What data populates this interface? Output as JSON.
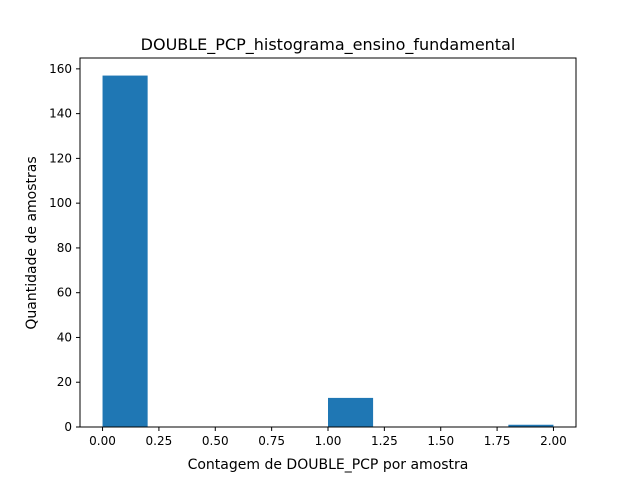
{
  "chart_data": {
    "type": "bar",
    "title": "DOUBLE_PCP_histograma_ensino_fundamental",
    "xlabel": "Contagem de DOUBLE_PCP por amostra",
    "ylabel": "Quantidade de amostras",
    "xlim": [
      -0.1,
      2.1
    ],
    "ylim": [
      0,
      164.85
    ],
    "grid": false,
    "bar_color": "#1f77b4",
    "bins": [
      {
        "x0": 0.0,
        "x1": 0.2,
        "value": 157
      },
      {
        "x0": 0.2,
        "x1": 0.4,
        "value": 0
      },
      {
        "x0": 0.4,
        "x1": 0.6,
        "value": 0
      },
      {
        "x0": 0.6,
        "x1": 0.8,
        "value": 0
      },
      {
        "x0": 0.8,
        "x1": 1.0,
        "value": 0
      },
      {
        "x0": 1.0,
        "x1": 1.2,
        "value": 13
      },
      {
        "x0": 1.2,
        "x1": 1.4,
        "value": 0
      },
      {
        "x0": 1.4,
        "x1": 1.6,
        "value": 0
      },
      {
        "x0": 1.6,
        "x1": 1.8,
        "value": 0
      },
      {
        "x0": 1.8,
        "x1": 2.0,
        "value": 1
      }
    ],
    "xticks": [
      {
        "value": 0.0,
        "label": "0.00"
      },
      {
        "value": 0.25,
        "label": "0.25"
      },
      {
        "value": 0.5,
        "label": "0.50"
      },
      {
        "value": 0.75,
        "label": "0.75"
      },
      {
        "value": 1.0,
        "label": "1.00"
      },
      {
        "value": 1.25,
        "label": "1.25"
      },
      {
        "value": 1.5,
        "label": "1.50"
      },
      {
        "value": 1.75,
        "label": "1.75"
      },
      {
        "value": 2.0,
        "label": "2.00"
      }
    ],
    "yticks": [
      {
        "value": 0,
        "label": "0"
      },
      {
        "value": 20,
        "label": "20"
      },
      {
        "value": 40,
        "label": "40"
      },
      {
        "value": 60,
        "label": "60"
      },
      {
        "value": 80,
        "label": "80"
      },
      {
        "value": 100,
        "label": "100"
      },
      {
        "value": 120,
        "label": "120"
      },
      {
        "value": 140,
        "label": "140"
      },
      {
        "value": 160,
        "label": "160"
      }
    ]
  }
}
